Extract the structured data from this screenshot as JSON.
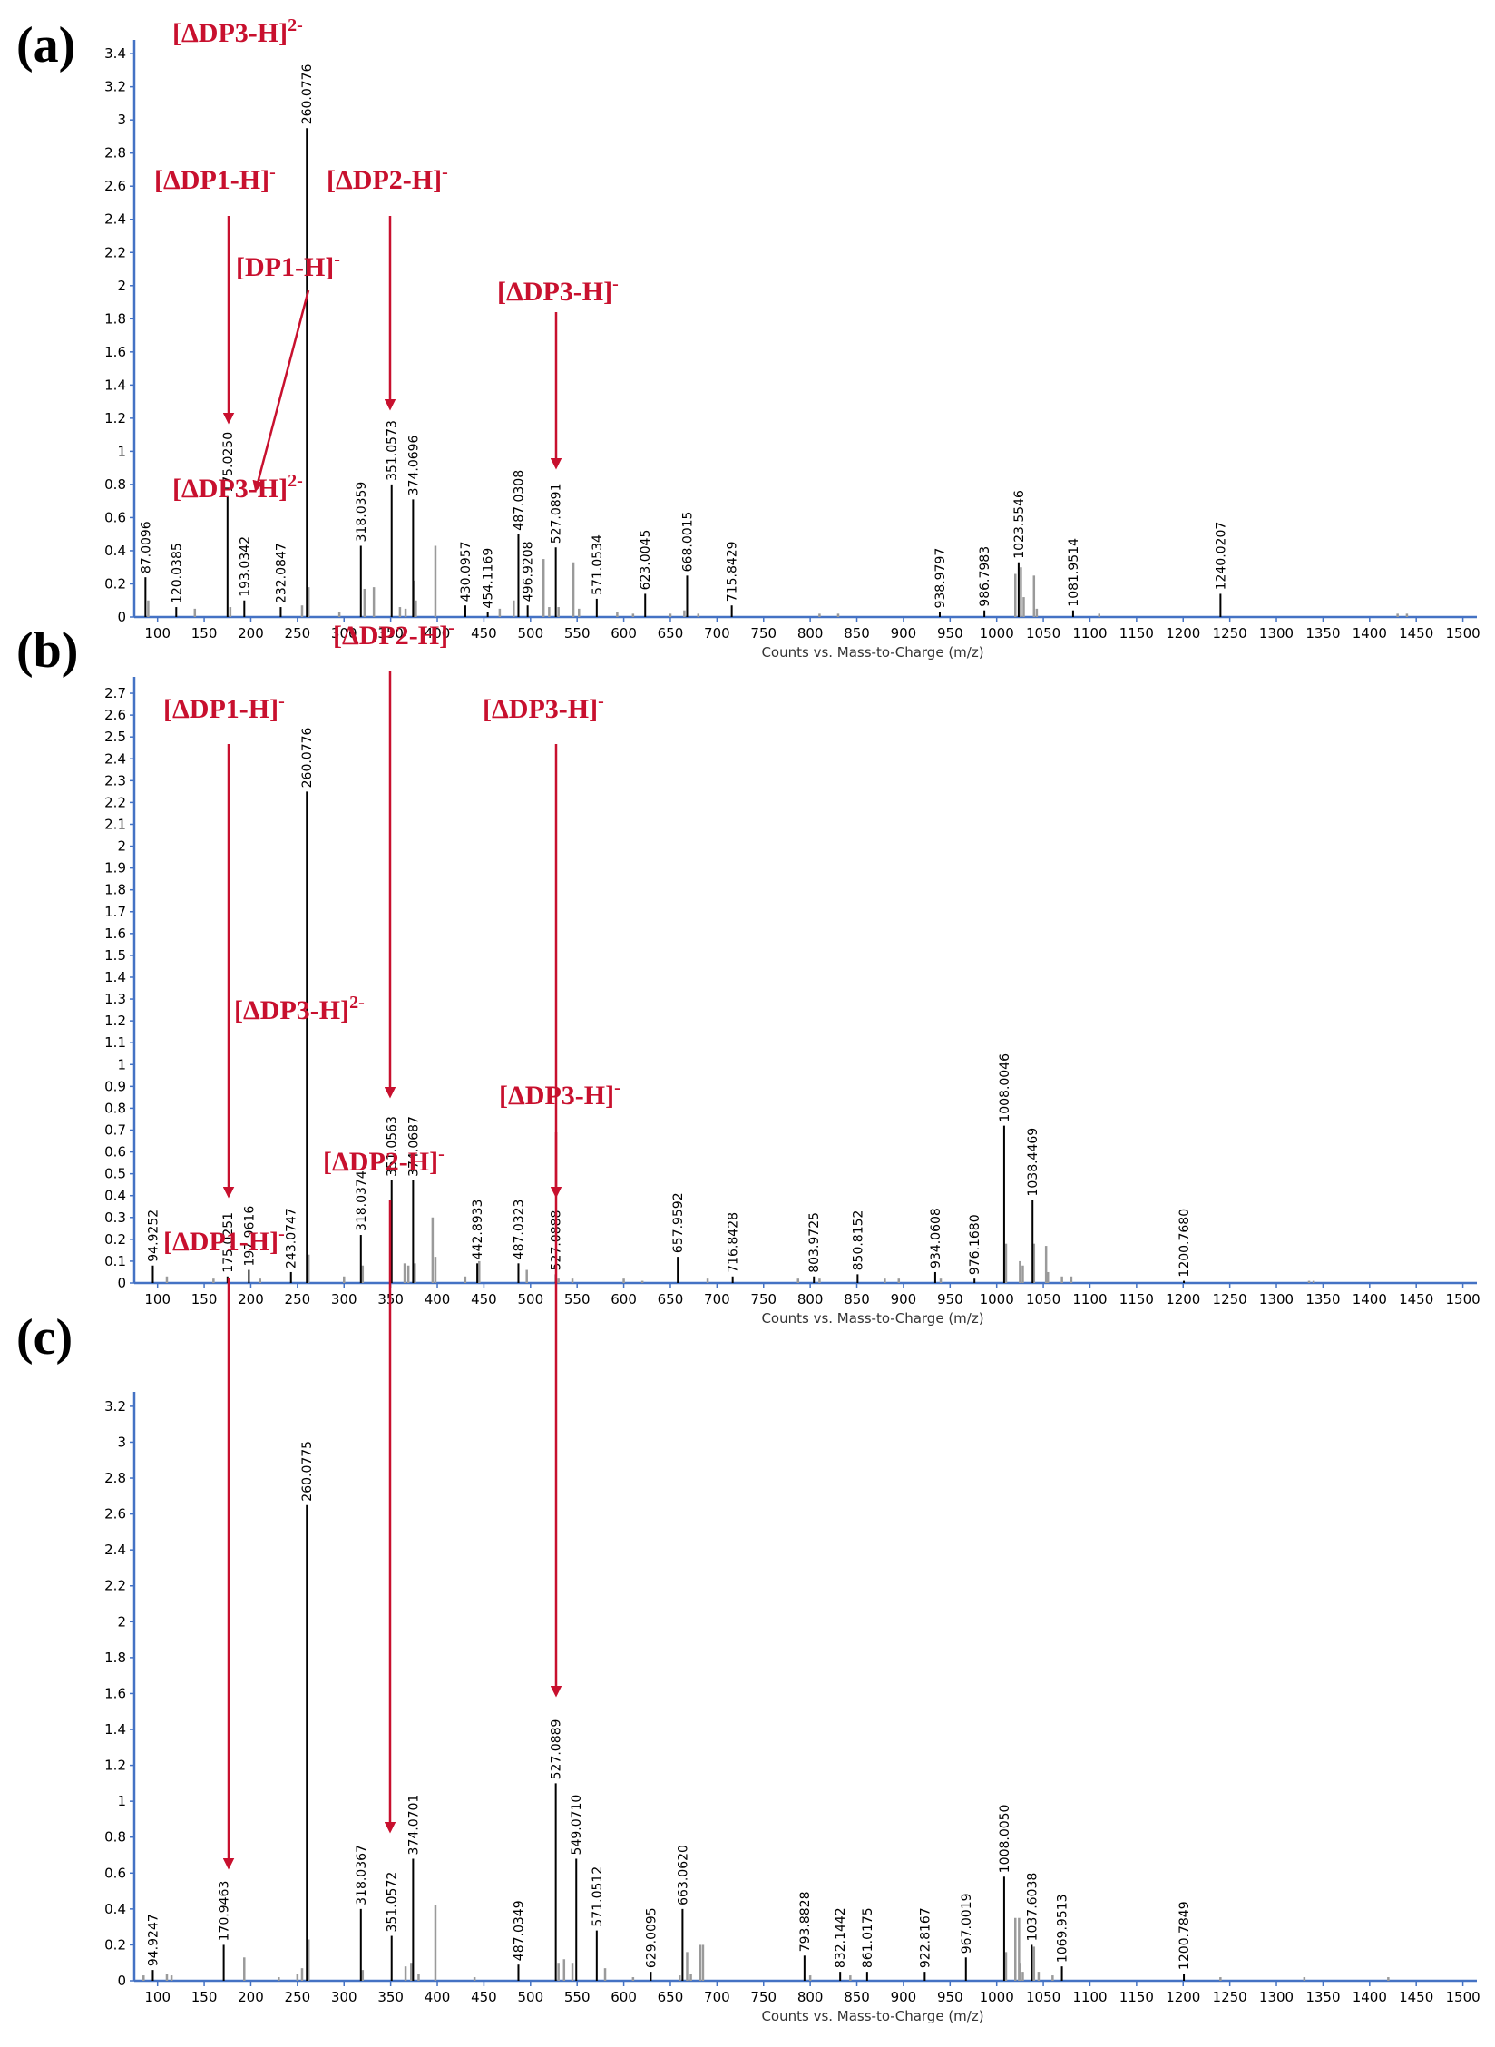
{
  "figure": {
    "colors": {
      "axis": "#4472c4",
      "annotation": "#c8102e",
      "peak": "#000000",
      "minor_peak": "#9a9a9a"
    }
  },
  "chart_data": [
    {
      "panel": "(a)",
      "type": "bar",
      "xlabel": "Counts vs. Mass-to-Charge (m/z)",
      "ylim": [
        0,
        3.45
      ],
      "yticks": [
        0,
        0.2,
        0.4,
        0.6,
        0.8,
        1,
        1.2,
        1.4,
        1.6,
        1.8,
        2,
        2.2,
        2.4,
        2.6,
        2.8,
        3,
        3.2,
        3.4
      ],
      "xlim": [
        75,
        1515
      ],
      "xticks": [
        100,
        150,
        200,
        250,
        300,
        350,
        400,
        450,
        500,
        550,
        600,
        650,
        700,
        750,
        800,
        850,
        900,
        950,
        1000,
        1050,
        1100,
        1150,
        1200,
        1250,
        1300,
        1350,
        1400,
        1450,
        1500
      ],
      "labeled_peaks": [
        {
          "mz": 87.0096,
          "y": 0.24,
          "label": "87.0096"
        },
        {
          "mz": 120.0385,
          "y": 0.06,
          "label": "120.0385"
        },
        {
          "mz": 175.025,
          "y": 0.73,
          "label": "175.0250"
        },
        {
          "mz": 193.0342,
          "y": 0.1,
          "label": "193.0342"
        },
        {
          "mz": 232.0847,
          "y": 0.06,
          "label": "232.0847"
        },
        {
          "mz": 260.0776,
          "y": 2.95,
          "label": "260.0776"
        },
        {
          "mz": 318.0359,
          "y": 0.43,
          "label": "318.0359"
        },
        {
          "mz": 351.0573,
          "y": 0.8,
          "label": "351.0573"
        },
        {
          "mz": 374.0696,
          "y": 0.71,
          "label": "374.0696"
        },
        {
          "mz": 430.0957,
          "y": 0.07,
          "label": "430.0957"
        },
        {
          "mz": 454.1169,
          "y": 0.03,
          "label": "454.1169"
        },
        {
          "mz": 487.0308,
          "y": 0.5,
          "label": "487.0308"
        },
        {
          "mz": 496.9208,
          "y": 0.07,
          "label": "496.9208"
        },
        {
          "mz": 527.0891,
          "y": 0.42,
          "label": "527.0891"
        },
        {
          "mz": 571.0534,
          "y": 0.11,
          "label": "571.0534"
        },
        {
          "mz": 623.0045,
          "y": 0.14,
          "label": "623.0045"
        },
        {
          "mz": 668.0015,
          "y": 0.25,
          "label": "668.0015"
        },
        {
          "mz": 715.8429,
          "y": 0.07,
          "label": "715.8429"
        },
        {
          "mz": 938.9797,
          "y": 0.03,
          "label": "938.9797"
        },
        {
          "mz": 986.7983,
          "y": 0.04,
          "label": "986.7983"
        },
        {
          "mz": 1023.5546,
          "y": 0.33,
          "label": "1023.5546"
        },
        {
          "mz": 1081.9514,
          "y": 0.04,
          "label": "1081.9514"
        },
        {
          "mz": 1240.0207,
          "y": 0.14,
          "label": "1240.0207"
        }
      ],
      "minor_peaks": [
        {
          "mz": 90,
          "y": 0.1
        },
        {
          "mz": 140,
          "y": 0.05
        },
        {
          "mz": 178,
          "y": 0.06
        },
        {
          "mz": 255,
          "y": 0.07
        },
        {
          "mz": 262,
          "y": 0.18
        },
        {
          "mz": 295,
          "y": 0.03
        },
        {
          "mz": 322,
          "y": 0.17
        },
        {
          "mz": 332,
          "y": 0.18
        },
        {
          "mz": 360,
          "y": 0.06
        },
        {
          "mz": 366,
          "y": 0.05
        },
        {
          "mz": 375,
          "y": 0.22
        },
        {
          "mz": 377,
          "y": 0.1
        },
        {
          "mz": 398,
          "y": 0.43
        },
        {
          "mz": 467,
          "y": 0.05
        },
        {
          "mz": 482,
          "y": 0.1
        },
        {
          "mz": 514,
          "y": 0.35
        },
        {
          "mz": 520,
          "y": 0.06
        },
        {
          "mz": 530,
          "y": 0.06
        },
        {
          "mz": 546,
          "y": 0.33
        },
        {
          "mz": 552,
          "y": 0.05
        },
        {
          "mz": 593,
          "y": 0.03
        },
        {
          "mz": 610,
          "y": 0.02
        },
        {
          "mz": 650,
          "y": 0.02
        },
        {
          "mz": 665,
          "y": 0.04
        },
        {
          "mz": 680,
          "y": 0.02
        },
        {
          "mz": 810,
          "y": 0.02
        },
        {
          "mz": 830,
          "y": 0.02
        },
        {
          "mz": 1020,
          "y": 0.26
        },
        {
          "mz": 1026,
          "y": 0.3
        },
        {
          "mz": 1029,
          "y": 0.12
        },
        {
          "mz": 1040,
          "y": 0.25
        },
        {
          "mz": 1043,
          "y": 0.05
        },
        {
          "mz": 1110,
          "y": 0.02
        },
        {
          "mz": 1430,
          "y": 0.02
        },
        {
          "mz": 1440,
          "y": 0.02
        }
      ],
      "annotations": [
        {
          "pre": "[ΔDP3-H]",
          "sup": "2-",
          "x": 190,
          "y": 46
        },
        {
          "pre": "[ΔDP1-H]",
          "sup": "-",
          "x": 170,
          "y": 208
        },
        {
          "pre": "[ΔDP2-H]",
          "sup": "-",
          "x": 360,
          "y": 208
        },
        {
          "pre": "[DP1-H]",
          "sup": "-",
          "x": 260,
          "y": 304
        },
        {
          "pre": "[ΔDP3-H]",
          "sup": "-",
          "x": 548,
          "y": 331
        }
      ]
    },
    {
      "panel": "(b)",
      "type": "bar",
      "xlabel": "Counts vs. Mass-to-Charge (m/z)",
      "ylim": [
        0,
        2.75
      ],
      "yticks": [
        0,
        0.1,
        0.2,
        0.3,
        0.4,
        0.5,
        0.6,
        0.7,
        0.8,
        0.9,
        1,
        1.1,
        1.2,
        1.3,
        1.4,
        1.5,
        1.6,
        1.7,
        1.8,
        1.9,
        2,
        2.1,
        2.2,
        2.3,
        2.4,
        2.5,
        2.6,
        2.7
      ],
      "xlim": [
        75,
        1515
      ],
      "xticks": [
        100,
        150,
        200,
        250,
        300,
        350,
        400,
        450,
        500,
        550,
        600,
        650,
        700,
        750,
        800,
        850,
        900,
        950,
        1000,
        1050,
        1100,
        1150,
        1200,
        1250,
        1300,
        1350,
        1400,
        1450,
        1500
      ],
      "labeled_peaks": [
        {
          "mz": 94.9252,
          "y": 0.08,
          "label": "94.9252"
        },
        {
          "mz": 175.0251,
          "y": 0.03,
          "label": "175.0251"
        },
        {
          "mz": 197.9616,
          "y": 0.06,
          "label": "197.9616"
        },
        {
          "mz": 243.0747,
          "y": 0.05,
          "label": "243.0747"
        },
        {
          "mz": 260.0776,
          "y": 2.25,
          "label": "260.0776"
        },
        {
          "mz": 318.0374,
          "y": 0.22,
          "label": "318.0374"
        },
        {
          "mz": 351.0563,
          "y": 0.47,
          "label": "351.0563"
        },
        {
          "mz": 374.0687,
          "y": 0.47,
          "label": "374.0687"
        },
        {
          "mz": 442.8933,
          "y": 0.09,
          "label": "442.8933"
        },
        {
          "mz": 487.0323,
          "y": 0.09,
          "label": "487.0323"
        },
        {
          "mz": 527.0888,
          "y": 0.04,
          "label": "527.0888"
        },
        {
          "mz": 657.9592,
          "y": 0.12,
          "label": "657.9592"
        },
        {
          "mz": 716.8428,
          "y": 0.03,
          "label": "716.8428"
        },
        {
          "mz": 803.9725,
          "y": 0.03,
          "label": "803.9725"
        },
        {
          "mz": 850.8152,
          "y": 0.04,
          "label": "850.8152"
        },
        {
          "mz": 934.0608,
          "y": 0.05,
          "label": "934.0608"
        },
        {
          "mz": 976.168,
          "y": 0.02,
          "label": "976.1680"
        },
        {
          "mz": 1008.0046,
          "y": 0.72,
          "label": "1008.0046"
        },
        {
          "mz": 1038.4469,
          "y": 0.38,
          "label": "1038.4469"
        },
        {
          "mz": 1200.768,
          "y": 0.01,
          "label": "1200.7680"
        }
      ],
      "minor_peaks": [
        {
          "mz": 110,
          "y": 0.03
        },
        {
          "mz": 160,
          "y": 0.02
        },
        {
          "mz": 210,
          "y": 0.02
        },
        {
          "mz": 262,
          "y": 0.13
        },
        {
          "mz": 300,
          "y": 0.03
        },
        {
          "mz": 320,
          "y": 0.08
        },
        {
          "mz": 365,
          "y": 0.09
        },
        {
          "mz": 369,
          "y": 0.08
        },
        {
          "mz": 376,
          "y": 0.09
        },
        {
          "mz": 395,
          "y": 0.3
        },
        {
          "mz": 398,
          "y": 0.12
        },
        {
          "mz": 430,
          "y": 0.03
        },
        {
          "mz": 445,
          "y": 0.1
        },
        {
          "mz": 496,
          "y": 0.06
        },
        {
          "mz": 530,
          "y": 0.02
        },
        {
          "mz": 545,
          "y": 0.02
        },
        {
          "mz": 600,
          "y": 0.02
        },
        {
          "mz": 620,
          "y": 0.01
        },
        {
          "mz": 690,
          "y": 0.02
        },
        {
          "mz": 787,
          "y": 0.02
        },
        {
          "mz": 810,
          "y": 0.02
        },
        {
          "mz": 880,
          "y": 0.02
        },
        {
          "mz": 895,
          "y": 0.02
        },
        {
          "mz": 940,
          "y": 0.02
        },
        {
          "mz": 1010,
          "y": 0.18
        },
        {
          "mz": 1025,
          "y": 0.1
        },
        {
          "mz": 1028,
          "y": 0.08
        },
        {
          "mz": 1040,
          "y": 0.18
        },
        {
          "mz": 1053,
          "y": 0.17
        },
        {
          "mz": 1055,
          "y": 0.05
        },
        {
          "mz": 1070,
          "y": 0.03
        },
        {
          "mz": 1080,
          "y": 0.03
        },
        {
          "mz": 1335,
          "y": 0.01
        },
        {
          "mz": 1340,
          "y": 0.01
        }
      ],
      "annotations": [
        {
          "pre": "[ΔDP3-H]",
          "sup": "2-",
          "x": 190,
          "y": 548
        },
        {
          "pre": "[ΔDP2-H]",
          "sup": "-",
          "x": 367,
          "y": 710
        },
        {
          "pre": "[ΔDP1-H]",
          "sup": "-",
          "x": 180,
          "y": 791
        },
        {
          "pre": "[ΔDP3-H]",
          "sup": "-",
          "x": 532,
          "y": 791
        }
      ]
    },
    {
      "panel": "(c)",
      "type": "bar",
      "xlabel": "Counts vs. Mass-to-Charge (m/z)",
      "ylim": [
        0,
        3.25
      ],
      "yticks": [
        0,
        0.2,
        0.4,
        0.6,
        0.8,
        1,
        1.2,
        1.4,
        1.6,
        1.8,
        2,
        2.2,
        2.4,
        2.6,
        2.8,
        3,
        3.2
      ],
      "xlim": [
        75,
        1515
      ],
      "xticks": [
        100,
        150,
        200,
        250,
        300,
        350,
        400,
        450,
        500,
        550,
        600,
        650,
        700,
        750,
        800,
        850,
        900,
        950,
        1000,
        1050,
        1100,
        1150,
        1200,
        1250,
        1300,
        1350,
        1400,
        1450,
        1500
      ],
      "labeled_peaks": [
        {
          "mz": 94.9247,
          "y": 0.06,
          "label": "94.9247"
        },
        {
          "mz": 170.9463,
          "y": 0.2,
          "label": "170.9463"
        },
        {
          "mz": 260.0775,
          "y": 2.65,
          "label": "260.0775"
        },
        {
          "mz": 318.0367,
          "y": 0.4,
          "label": "318.0367"
        },
        {
          "mz": 351.0572,
          "y": 0.25,
          "label": "351.0572"
        },
        {
          "mz": 374.0701,
          "y": 0.68,
          "label": "374.0701"
        },
        {
          "mz": 487.0349,
          "y": 0.09,
          "label": "487.0349"
        },
        {
          "mz": 527.0889,
          "y": 1.1,
          "label": "527.0889"
        },
        {
          "mz": 549.071,
          "y": 0.68,
          "label": "549.0710"
        },
        {
          "mz": 571.0512,
          "y": 0.28,
          "label": "571.0512"
        },
        {
          "mz": 629.0095,
          "y": 0.05,
          "label": "629.0095"
        },
        {
          "mz": 663.062,
          "y": 0.4,
          "label": "663.0620"
        },
        {
          "mz": 793.8828,
          "y": 0.14,
          "label": "793.8828"
        },
        {
          "mz": 832.1442,
          "y": 0.05,
          "label": "832.1442"
        },
        {
          "mz": 861.0175,
          "y": 0.05,
          "label": "861.0175"
        },
        {
          "mz": 922.8167,
          "y": 0.05,
          "label": "922.8167"
        },
        {
          "mz": 967.0019,
          "y": 0.13,
          "label": "967.0019"
        },
        {
          "mz": 1008.005,
          "y": 0.58,
          "label": "1008.0050"
        },
        {
          "mz": 1037.6038,
          "y": 0.2,
          "label": "1037.6038"
        },
        {
          "mz": 1069.9513,
          "y": 0.08,
          "label": "1069.9513"
        },
        {
          "mz": 1200.7849,
          "y": 0.04,
          "label": "1200.7849"
        }
      ],
      "minor_peaks": [
        {
          "mz": 85,
          "y": 0.03
        },
        {
          "mz": 110,
          "y": 0.04
        },
        {
          "mz": 115,
          "y": 0.03
        },
        {
          "mz": 193,
          "y": 0.13
        },
        {
          "mz": 230,
          "y": 0.02
        },
        {
          "mz": 250,
          "y": 0.04
        },
        {
          "mz": 255,
          "y": 0.07
        },
        {
          "mz": 262,
          "y": 0.23
        },
        {
          "mz": 320,
          "y": 0.06
        },
        {
          "mz": 366,
          "y": 0.08
        },
        {
          "mz": 372,
          "y": 0.1
        },
        {
          "mz": 380,
          "y": 0.04
        },
        {
          "mz": 398,
          "y": 0.42
        },
        {
          "mz": 440,
          "y": 0.02
        },
        {
          "mz": 530,
          "y": 0.1
        },
        {
          "mz": 536,
          "y": 0.12
        },
        {
          "mz": 545,
          "y": 0.1
        },
        {
          "mz": 580,
          "y": 0.07
        },
        {
          "mz": 610,
          "y": 0.02
        },
        {
          "mz": 660,
          "y": 0.03
        },
        {
          "mz": 668,
          "y": 0.16
        },
        {
          "mz": 672,
          "y": 0.04
        },
        {
          "mz": 682,
          "y": 0.2
        },
        {
          "mz": 685,
          "y": 0.2
        },
        {
          "mz": 800,
          "y": 0.03
        },
        {
          "mz": 843,
          "y": 0.03
        },
        {
          "mz": 1010,
          "y": 0.16
        },
        {
          "mz": 1020,
          "y": 0.35
        },
        {
          "mz": 1024,
          "y": 0.35
        },
        {
          "mz": 1025,
          "y": 0.1
        },
        {
          "mz": 1028,
          "y": 0.05
        },
        {
          "mz": 1040,
          "y": 0.19
        },
        {
          "mz": 1045,
          "y": 0.05
        },
        {
          "mz": 1060,
          "y": 0.03
        },
        {
          "mz": 1240,
          "y": 0.02
        },
        {
          "mz": 1330,
          "y": 0.02
        },
        {
          "mz": 1420,
          "y": 0.02
        }
      ],
      "annotations": [
        {
          "pre": "[ΔDP3-H]",
          "sup": "2-",
          "x": 258,
          "y": 1123
        },
        {
          "pre": "[ΔDP3-H]",
          "sup": "-",
          "x": 550,
          "y": 1217
        },
        {
          "pre": "[ΔDP2-H]",
          "sup": "-",
          "x": 356,
          "y": 1290
        },
        {
          "pre": "[ΔDP1-H]",
          "sup": "-",
          "x": 180,
          "y": 1378
        }
      ]
    }
  ]
}
